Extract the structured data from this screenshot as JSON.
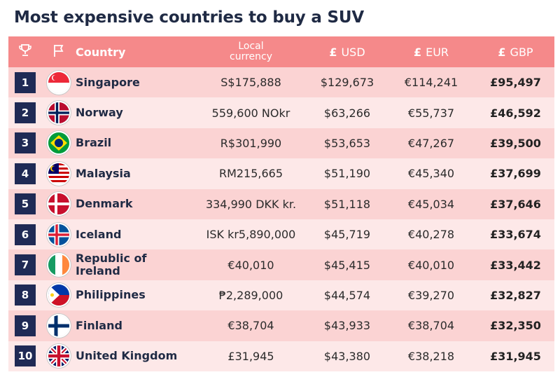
{
  "title": "Most expensive countries to buy a SUV",
  "colors": {
    "header_bg": "#f5898a",
    "row_dark": "#fbd3d3",
    "row_light": "#fde8e8",
    "rank_bg": "#1f2a55"
  },
  "header": {
    "rank_icon": "trophy-icon",
    "flag_icon": "flag-icon",
    "country": "Country",
    "local_line1": "Local",
    "local_line2": "currency",
    "usd_symbol": "£",
    "usd": "USD",
    "eur_symbol": "£",
    "eur": "EUR",
    "gbp_symbol": "£",
    "gbp": "GBP"
  },
  "rows": [
    {
      "rank": "1",
      "flag": "singapore-flag-icon",
      "country": "Singapore",
      "local": "S$175,888",
      "usd": "$129,673",
      "eur": "€114,241",
      "gbp": "£95,497"
    },
    {
      "rank": "2",
      "flag": "norway-flag-icon",
      "country": "Norway",
      "local": "559,600 NOkr",
      "usd": "$63,266",
      "eur": "€55,737",
      "gbp": "£46,592"
    },
    {
      "rank": "3",
      "flag": "brazil-flag-icon",
      "country": "Brazil",
      "local": "R$301,990",
      "usd": "$53,653",
      "eur": "€47,267",
      "gbp": "£39,500"
    },
    {
      "rank": "4",
      "flag": "malaysia-flag-icon",
      "country": "Malaysia",
      "local": "RM215,665",
      "usd": "$51,190",
      "eur": "€45,340",
      "gbp": "£37,699"
    },
    {
      "rank": "5",
      "flag": "denmark-flag-icon",
      "country": "Denmark",
      "local": "334,990 DKK kr.",
      "usd": "$51,118",
      "eur": "€45,034",
      "gbp": "£37,646"
    },
    {
      "rank": "6",
      "flag": "iceland-flag-icon",
      "country": "Iceland",
      "local": "ISK kr5,890,000",
      "usd": "$45,719",
      "eur": "€40,278",
      "gbp": "£33,674"
    },
    {
      "rank": "7",
      "flag": "ireland-flag-icon",
      "country": "Republic of Ireland",
      "local": "€40,010",
      "usd": "$45,415",
      "eur": "€40,010",
      "gbp": "£33,442"
    },
    {
      "rank": "8",
      "flag": "philippines-flag-icon",
      "country": "Philippines",
      "local": "₱2,289,000",
      "usd": "$44,574",
      "eur": "€39,270",
      "gbp": "£32,827"
    },
    {
      "rank": "9",
      "flag": "finland-flag-icon",
      "country": "Finland",
      "local": "€38,704",
      "usd": "$43,933",
      "eur": "€38,704",
      "gbp": "£32,350"
    },
    {
      "rank": "10",
      "flag": "uk-flag-icon",
      "country": "United Kingdom",
      "local": "£31,945",
      "usd": "$43,380",
      "eur": "€38,218",
      "gbp": "£31,945"
    }
  ]
}
